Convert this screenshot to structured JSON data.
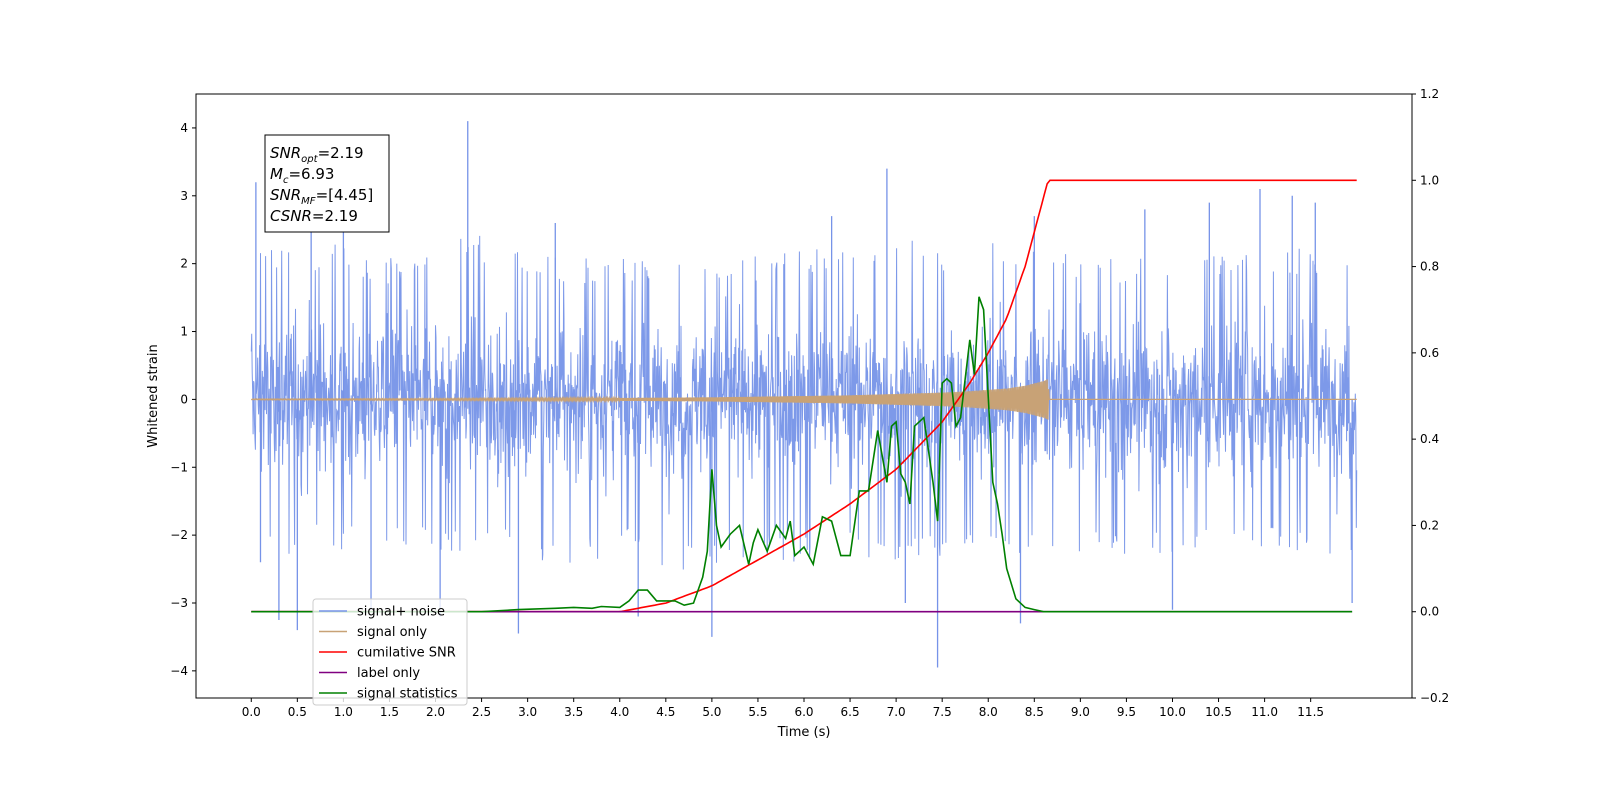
{
  "chart_data": {
    "type": "line",
    "xlabel": "Time (s)",
    "ylabel": "Whitened strain",
    "xlim": [
      -0.6,
      12.6
    ],
    "ylim": [
      -4.4,
      4.5
    ],
    "y2lim": [
      -0.2,
      1.2
    ],
    "x_ticks": [
      "0.0",
      "0.5",
      "1.0",
      "1.5",
      "2.0",
      "2.5",
      "3.0",
      "3.5",
      "4.0",
      "4.5",
      "5.0",
      "5.5",
      "6.0",
      "6.5",
      "7.0",
      "7.5",
      "8.0",
      "8.5",
      "9.0",
      "9.5",
      "10.0",
      "10.5",
      "11.0",
      "11.5"
    ],
    "y_ticks": [
      -4,
      -3,
      -2,
      -1,
      0,
      1,
      2,
      3,
      4
    ],
    "y2_ticks": [
      "−0.2",
      "0.0",
      "0.2",
      "0.4",
      "0.6",
      "0.8",
      "1.0",
      "1.2"
    ],
    "grid": false,
    "legend_position": "lower-left",
    "annotation": {
      "lines": [
        {
          "base": "SNR",
          "sub": "opt",
          "value": "=2.19"
        },
        {
          "base": "M",
          "sub": "c",
          "value": "=6.93"
        },
        {
          "base": "SNR",
          "sub": "MF",
          "value": "=[4.45]"
        },
        {
          "base": "CSNR",
          "sub": "",
          "value": "=2.19"
        }
      ]
    },
    "series": [
      {
        "name": "signal+ noise",
        "color": "#7693e8",
        "axis": "left",
        "envelope_x": [
          0.0,
          0.5,
          1.0,
          1.5,
          2.0,
          2.5,
          3.0,
          3.5,
          4.0,
          4.5,
          5.0,
          5.5,
          6.0,
          6.5,
          7.0,
          7.5,
          8.0,
          8.5,
          9.0,
          9.5,
          10.0,
          10.5,
          11.0,
          11.5,
          12.0
        ],
        "envelope_upper": [
          2.3,
          2.1,
          2.2,
          2.0,
          2.2,
          2.3,
          2.1,
          2.0,
          2.0,
          2.0,
          2.1,
          2.0,
          2.1,
          2.2,
          2.3,
          2.1,
          2.2,
          2.2,
          2.1,
          2.0,
          2.1,
          2.1,
          2.2,
          2.1,
          2.0
        ],
        "envelope_lower": [
          -2.1,
          -2.2,
          -2.1,
          -2.2,
          -2.2,
          -2.1,
          -2.4,
          -2.3,
          -2.2,
          -2.4,
          -2.4,
          -2.2,
          -2.3,
          -2.3,
          -2.4,
          -2.2,
          -2.3,
          -2.3,
          -2.2,
          -2.2,
          -2.3,
          -2.2,
          -2.2,
          -2.3,
          -2.1
        ],
        "spikes": [
          [
            0.05,
            3.2
          ],
          [
            0.1,
            -2.4
          ],
          [
            0.3,
            -3.25
          ],
          [
            0.5,
            -3.4
          ],
          [
            0.65,
            2.8
          ],
          [
            1.0,
            2.9
          ],
          [
            1.3,
            -3.1
          ],
          [
            2.05,
            -3.2
          ],
          [
            2.35,
            4.1
          ],
          [
            2.9,
            -3.45
          ],
          [
            3.3,
            2.6
          ],
          [
            4.2,
            -3.2
          ],
          [
            5.0,
            -3.5
          ],
          [
            6.3,
            2.7
          ],
          [
            6.9,
            3.4
          ],
          [
            7.1,
            -3.0
          ],
          [
            7.45,
            -3.95
          ],
          [
            8.35,
            -3.3
          ],
          [
            8.5,
            2.7
          ],
          [
            9.7,
            2.8
          ],
          [
            10.0,
            -3.1
          ],
          [
            10.4,
            2.9
          ],
          [
            10.95,
            3.1
          ],
          [
            11.3,
            3.0
          ],
          [
            11.55,
            2.9
          ],
          [
            11.95,
            -3.0
          ]
        ]
      },
      {
        "name": "signal only",
        "color": "#c8a276",
        "axis": "left",
        "envelope_x": [
          0.0,
          2.0,
          4.0,
          5.0,
          6.0,
          6.5,
          7.0,
          7.5,
          7.8,
          8.0,
          8.2,
          8.4,
          8.6,
          8.65,
          8.66,
          12.0
        ],
        "amplitude": [
          0.005,
          0.01,
          0.02,
          0.03,
          0.05,
          0.06,
          0.08,
          0.1,
          0.12,
          0.14,
          0.16,
          0.2,
          0.27,
          0.3,
          0.0,
          0.0
        ]
      },
      {
        "name": "cumilative SNR",
        "color": "#ff0000",
        "axis": "right",
        "x": [
          0.0,
          4.0,
          4.5,
          5.0,
          5.5,
          6.0,
          6.5,
          7.0,
          7.5,
          7.8,
          8.0,
          8.2,
          8.4,
          8.55,
          8.65,
          12.0
        ],
        "y": [
          0.0,
          0.0,
          0.02,
          0.06,
          0.12,
          0.18,
          0.25,
          0.33,
          0.44,
          0.53,
          0.6,
          0.68,
          0.8,
          0.92,
          1.0,
          1.0
        ]
      },
      {
        "name": "label only",
        "color": "#800080",
        "axis": "right",
        "x": [
          0.0,
          11.95
        ],
        "y": [
          0.0,
          0.0
        ]
      },
      {
        "name": "signal statistics",
        "color": "#008000",
        "axis": "right",
        "x": [
          0.0,
          2.5,
          2.9,
          3.3,
          3.5,
          3.7,
          3.8,
          4.0,
          4.1,
          4.2,
          4.3,
          4.4,
          4.5,
          4.6,
          4.7,
          4.8,
          4.9,
          4.95,
          5.0,
          5.05,
          5.1,
          5.2,
          5.3,
          5.4,
          5.45,
          5.5,
          5.6,
          5.7,
          5.8,
          5.85,
          5.9,
          6.0,
          6.1,
          6.2,
          6.3,
          6.4,
          6.5,
          6.6,
          6.7,
          6.8,
          6.9,
          6.95,
          7.0,
          7.05,
          7.1,
          7.15,
          7.2,
          7.3,
          7.4,
          7.45,
          7.5,
          7.55,
          7.6,
          7.65,
          7.7,
          7.8,
          7.85,
          7.9,
          7.95,
          8.0,
          8.05,
          8.1,
          8.15,
          8.2,
          8.3,
          8.4,
          8.5,
          8.6,
          9.0,
          11.95
        ],
        "y": [
          0.0,
          0.0,
          0.005,
          0.008,
          0.01,
          0.008,
          0.012,
          0.01,
          0.025,
          0.05,
          0.05,
          0.025,
          0.025,
          0.025,
          0.015,
          0.02,
          0.08,
          0.14,
          0.33,
          0.2,
          0.15,
          0.18,
          0.2,
          0.11,
          0.16,
          0.19,
          0.14,
          0.2,
          0.17,
          0.21,
          0.13,
          0.15,
          0.11,
          0.22,
          0.21,
          0.13,
          0.13,
          0.28,
          0.28,
          0.42,
          0.3,
          0.43,
          0.44,
          0.32,
          0.3,
          0.25,
          0.43,
          0.45,
          0.3,
          0.21,
          0.53,
          0.54,
          0.53,
          0.43,
          0.45,
          0.63,
          0.55,
          0.73,
          0.7,
          0.5,
          0.3,
          0.25,
          0.18,
          0.1,
          0.03,
          0.01,
          0.005,
          0.0,
          0.0,
          0.0
        ]
      }
    ]
  }
}
